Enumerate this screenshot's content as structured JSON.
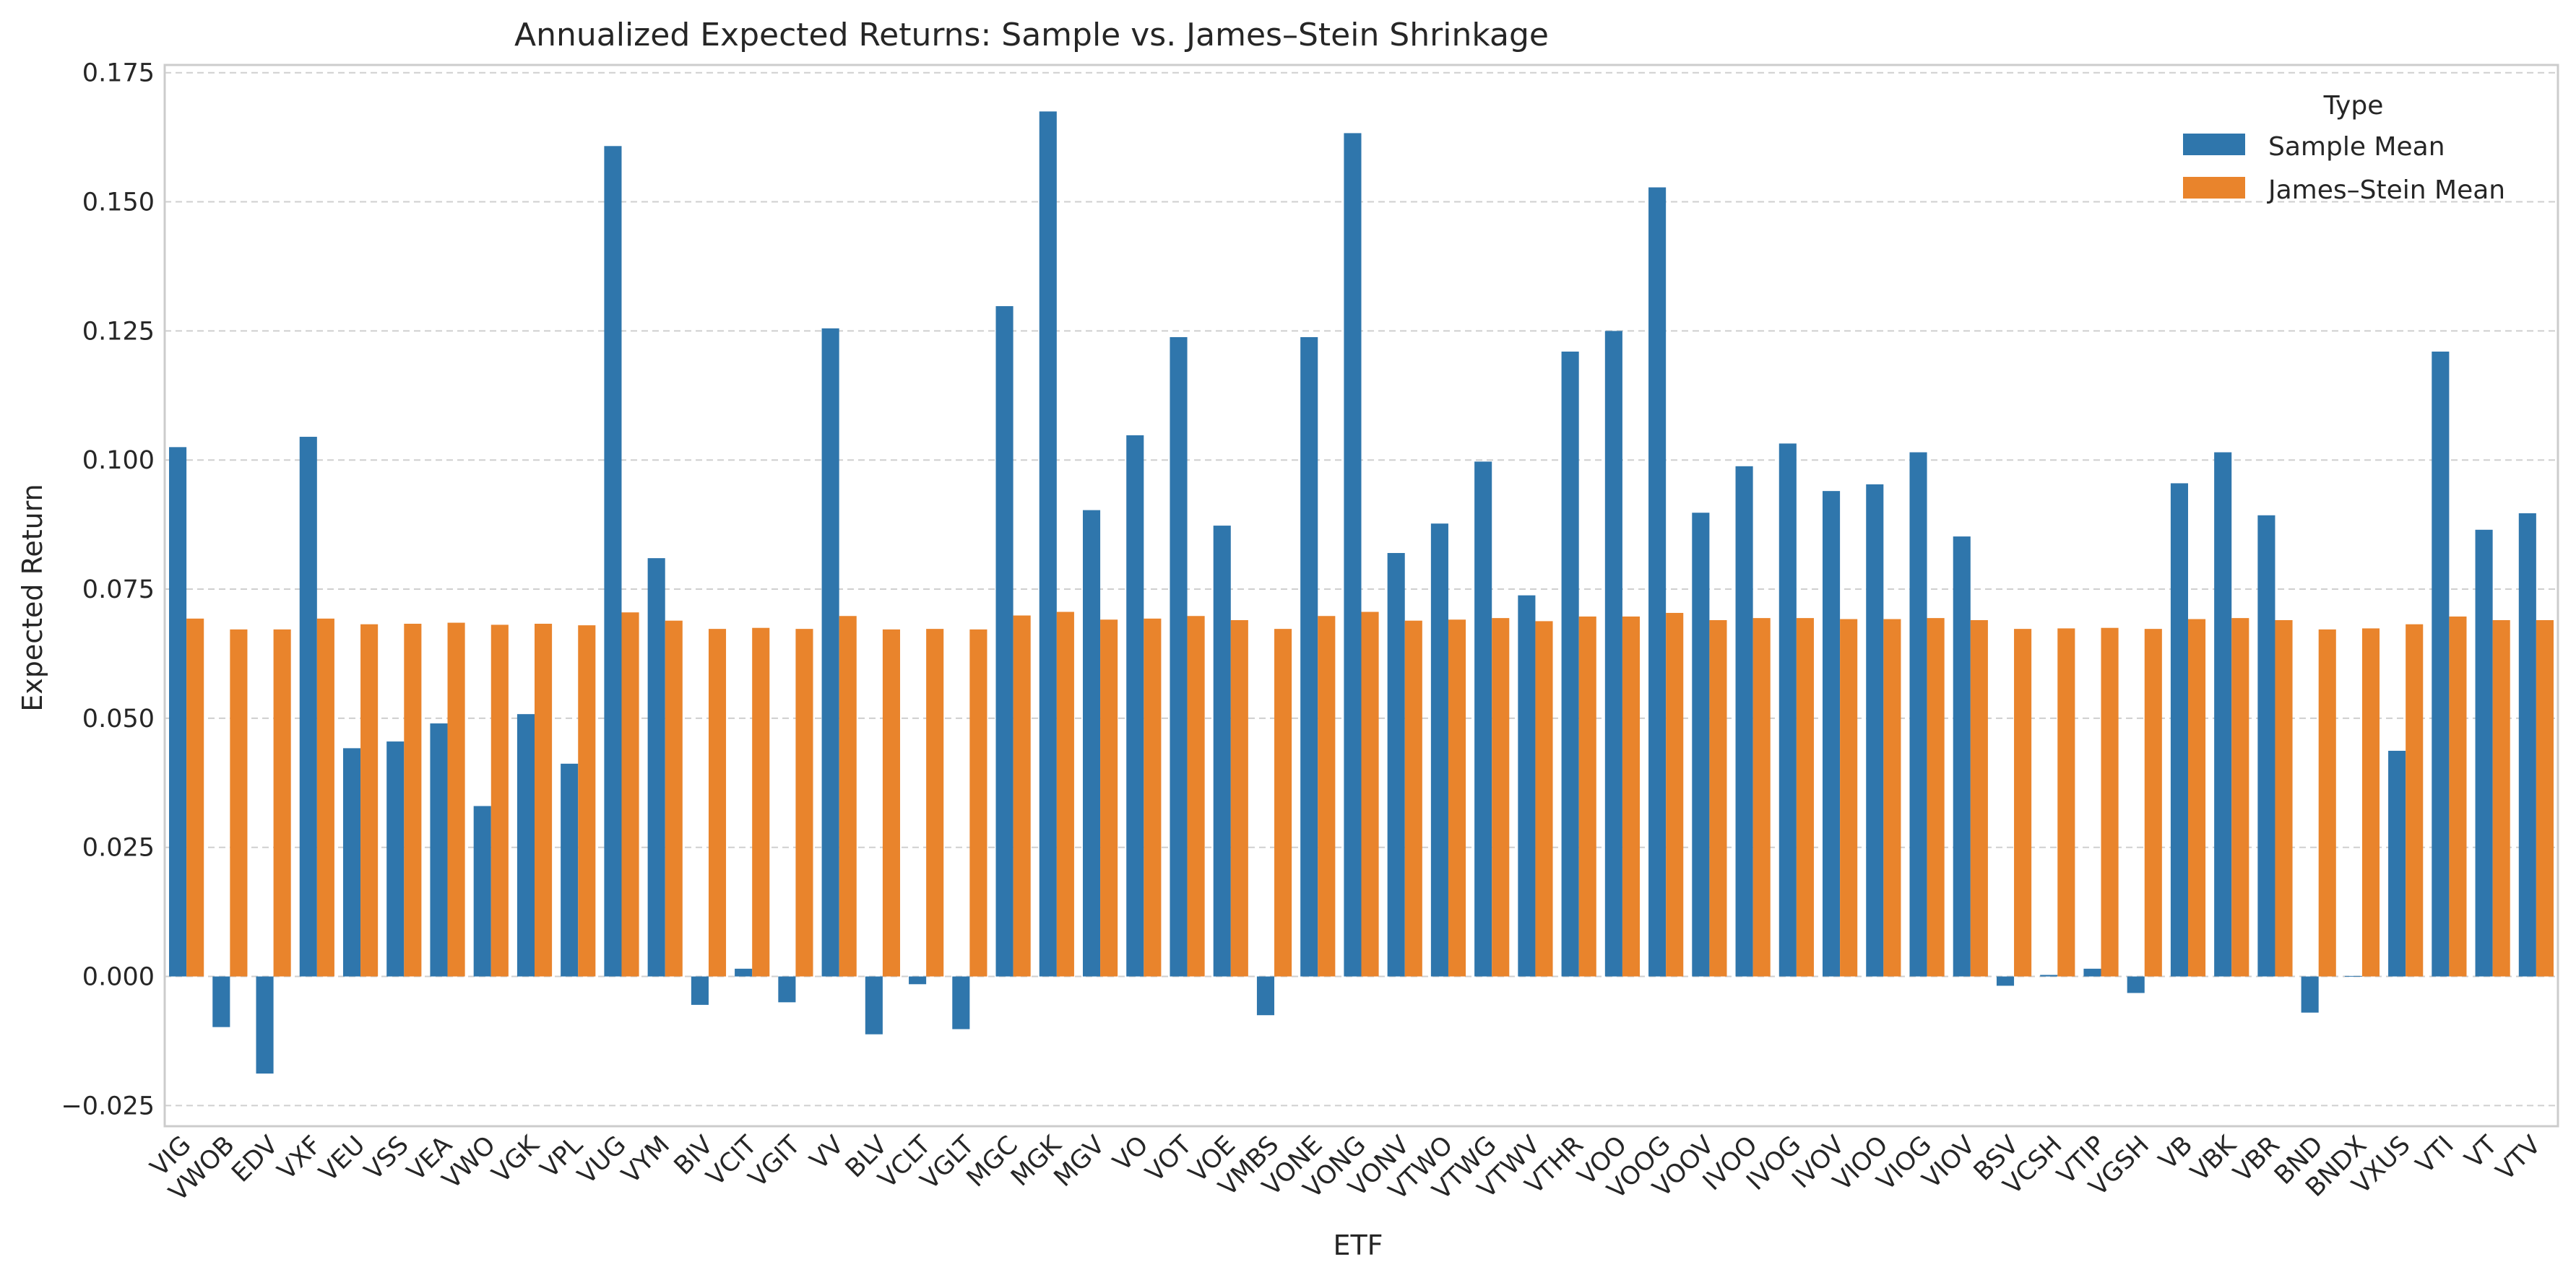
{
  "chart_data": {
    "type": "bar",
    "title": "Annualized Expected Returns: Sample vs. James–Stein Shrinkage",
    "xlabel": "ETF",
    "ylabel": "Expected Return",
    "ylim": [
      -0.029,
      0.1765
    ],
    "yticks": [
      -0.025,
      0.0,
      0.025,
      0.05,
      0.075,
      0.1,
      0.125,
      0.15,
      0.175
    ],
    "ytick_labels": [
      "−0.025",
      "0.000",
      "0.025",
      "0.050",
      "0.075",
      "0.100",
      "0.125",
      "0.150",
      "0.175"
    ],
    "grid": "y",
    "legend": {
      "title": "Type",
      "placement": "top-right"
    },
    "categories": [
      "VIG",
      "VWOB",
      "EDV",
      "VXF",
      "VEU",
      "VSS",
      "VEA",
      "VWO",
      "VGK",
      "VPL",
      "VUG",
      "VYM",
      "BIV",
      "VCIT",
      "VGIT",
      "VV",
      "BLV",
      "VCLT",
      "VGLT",
      "MGC",
      "MGK",
      "MGV",
      "VO",
      "VOT",
      "VOE",
      "VMBS",
      "VONE",
      "VONG",
      "VONV",
      "VTWO",
      "VTWG",
      "VTWV",
      "VTHR",
      "VOO",
      "VOOG",
      "VOOV",
      "IVOO",
      "IVOG",
      "IVOV",
      "VIOO",
      "VIOG",
      "VIOV",
      "BSV",
      "VCSH",
      "VTIP",
      "VGSH",
      "VB",
      "VBK",
      "VBR",
      "BND",
      "BNDX",
      "VXUS",
      "VTI",
      "VT",
      "VTV"
    ],
    "series": [
      {
        "name": "Sample Mean",
        "color": "#2f76ac",
        "values": [
          0.1025,
          -0.0098,
          -0.0188,
          0.1045,
          0.0442,
          0.0455,
          0.049,
          0.033,
          0.0508,
          0.0412,
          0.1608,
          0.081,
          -0.0055,
          0.0015,
          -0.005,
          0.1255,
          -0.0112,
          -0.0015,
          -0.0102,
          0.1298,
          0.1675,
          0.0903,
          0.1048,
          0.1238,
          0.0873,
          -0.0075,
          0.1238,
          0.1633,
          0.082,
          0.0877,
          0.0997,
          0.0738,
          0.121,
          0.125,
          0.1528,
          0.0898,
          0.0988,
          0.1032,
          0.094,
          0.0953,
          0.1015,
          0.0852,
          -0.0018,
          0.0003,
          0.0015,
          -0.0032,
          0.0955,
          0.1015,
          0.0893,
          -0.007,
          0.0001,
          0.0437,
          0.121,
          0.0865,
          0.0897
        ]
      },
      {
        "name": "James–Stein Mean",
        "color": "#e9842c",
        "values": [
          0.0693,
          0.0672,
          0.0672,
          0.0693,
          0.0682,
          0.0683,
          0.0685,
          0.0681,
          0.0683,
          0.068,
          0.0705,
          0.0689,
          0.0673,
          0.0675,
          0.0673,
          0.0698,
          0.0672,
          0.0673,
          0.0672,
          0.0699,
          0.0706,
          0.0691,
          0.0693,
          0.0698,
          0.069,
          0.0673,
          0.0698,
          0.0706,
          0.0689,
          0.0691,
          0.0694,
          0.0688,
          0.0697,
          0.0697,
          0.0704,
          0.069,
          0.0694,
          0.0694,
          0.0692,
          0.0692,
          0.0694,
          0.069,
          0.0673,
          0.0674,
          0.0675,
          0.0673,
          0.0692,
          0.0694,
          0.069,
          0.0672,
          0.0674,
          0.0682,
          0.0697,
          0.069,
          0.069
        ]
      }
    ]
  }
}
